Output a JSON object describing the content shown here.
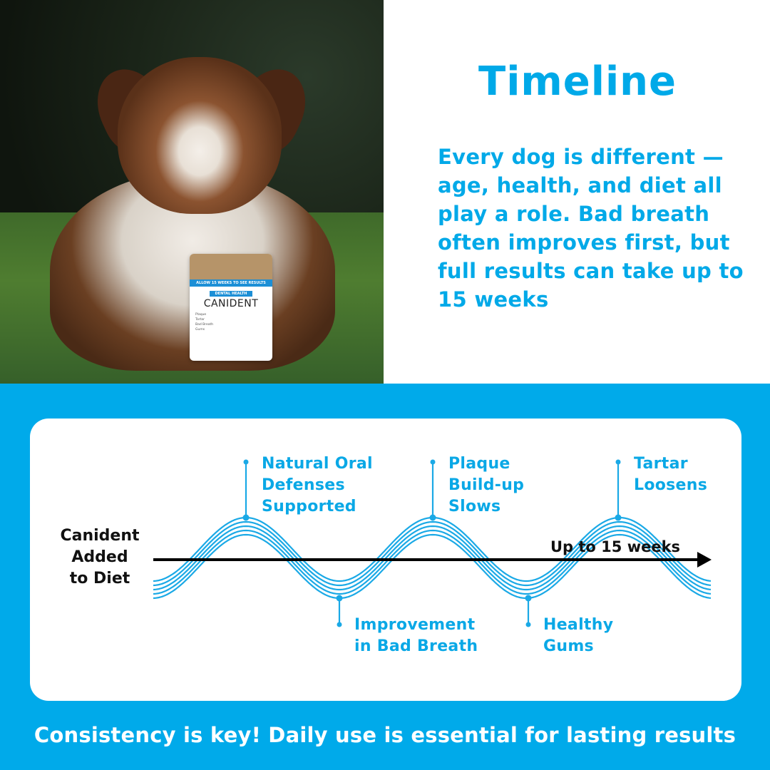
{
  "header": {
    "title": "Timeline",
    "intro": "Every dog is different — age, health, and diet all play a role. Bad breath often improves first, but full results can take up to 15 weeks"
  },
  "product": {
    "band": "ALLOW 15 WEEKS TO SEE RESULTS",
    "tag": "DENTAL HEALTH",
    "brand": "CANIDENT",
    "benefits": [
      "Plaque",
      "Tartar",
      "Bad Breath",
      "Gums"
    ]
  },
  "timeline": {
    "start_label": [
      "Canident",
      "Added",
      "to Diet"
    ],
    "end_label": "Up to 15 weeks",
    "milestones": [
      {
        "lines": [
          "Natural Oral",
          "Defenses",
          "Supported"
        ],
        "position": "above"
      },
      {
        "lines": [
          "Improvement",
          "in Bad Breath"
        ],
        "position": "below"
      },
      {
        "lines": [
          "Plaque",
          "Build-up",
          "Slows"
        ],
        "position": "above"
      },
      {
        "lines": [
          "Healthy",
          "Gums"
        ],
        "position": "below"
      },
      {
        "lines": [
          "Tartar",
          "Loosens"
        ],
        "position": "above"
      }
    ]
  },
  "footer": "Consistency is key! Daily use is essential for lasting results",
  "colors": {
    "accent": "#00aaea",
    "wave": "#1aa9e6",
    "arrow": "#000000"
  }
}
